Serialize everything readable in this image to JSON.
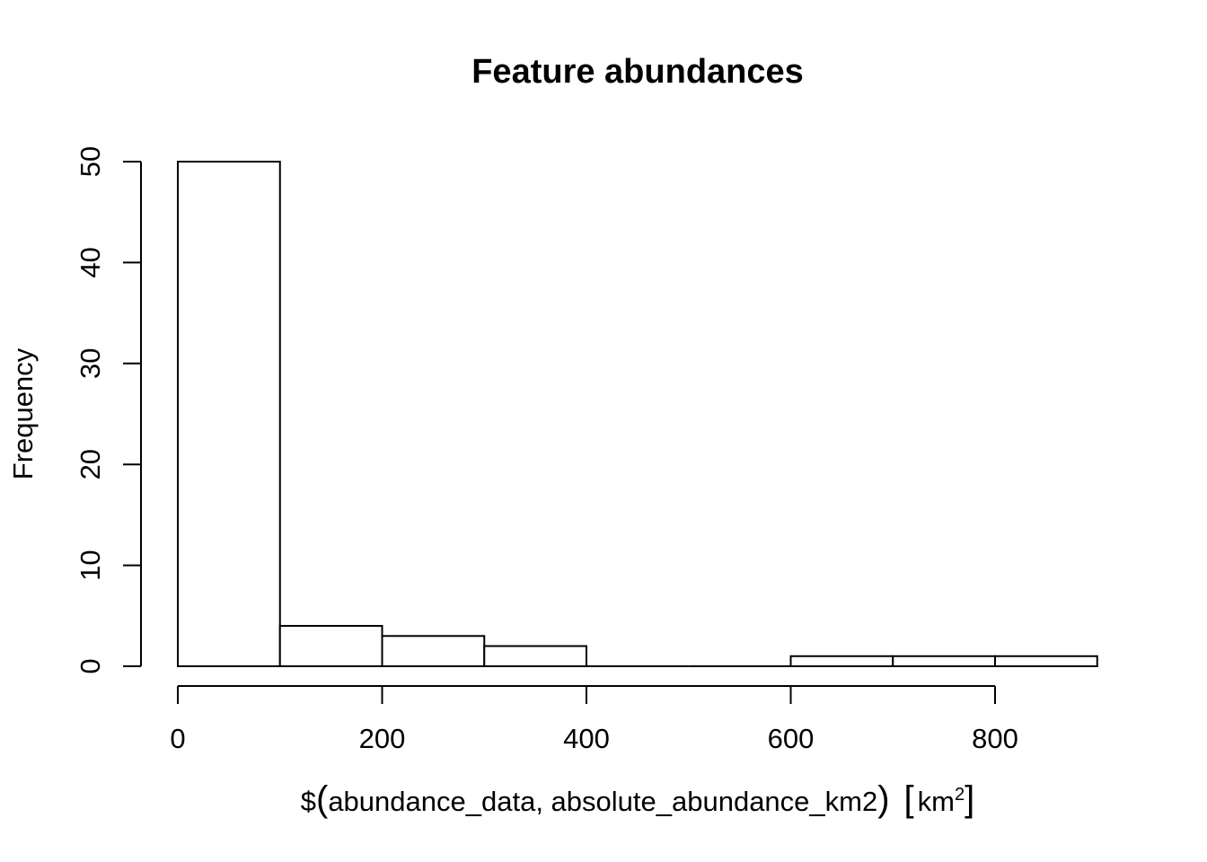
{
  "chart_data": {
    "type": "bar",
    "subtype": "histogram",
    "title": "Feature abundances",
    "xlabel": {
      "prefix": "$",
      "open_paren": "(",
      "body": "abundance_data, absolute_abundance_km2",
      "close_paren": ")",
      "open_bracket": "[",
      "unit": "km",
      "unit_superscript": "2",
      "close_bracket": "]"
    },
    "ylabel": "Frequency",
    "bins": [
      {
        "start": 0,
        "end": 100,
        "count": 50
      },
      {
        "start": 100,
        "end": 200,
        "count": 4
      },
      {
        "start": 200,
        "end": 300,
        "count": 3
      },
      {
        "start": 300,
        "end": 400,
        "count": 2
      },
      {
        "start": 400,
        "end": 500,
        "count": 0
      },
      {
        "start": 500,
        "end": 600,
        "count": 0
      },
      {
        "start": 600,
        "end": 700,
        "count": 1
      },
      {
        "start": 700,
        "end": 800,
        "count": 1
      },
      {
        "start": 800,
        "end": 900,
        "count": 1
      }
    ],
    "xlim": [
      0,
      900
    ],
    "ylim": [
      0,
      50
    ],
    "x_ticks": [
      0,
      200,
      400,
      600,
      800
    ],
    "x_tick_labels": [
      "0",
      "200",
      "400",
      "600",
      "800"
    ],
    "y_ticks": [
      0,
      10,
      20,
      30,
      40,
      50
    ],
    "y_tick_labels": [
      "0",
      "10",
      "20",
      "30",
      "40",
      "50"
    ],
    "grid": false,
    "legend": "none",
    "bar_fill": "#ffffff",
    "bar_stroke": "#000000"
  }
}
